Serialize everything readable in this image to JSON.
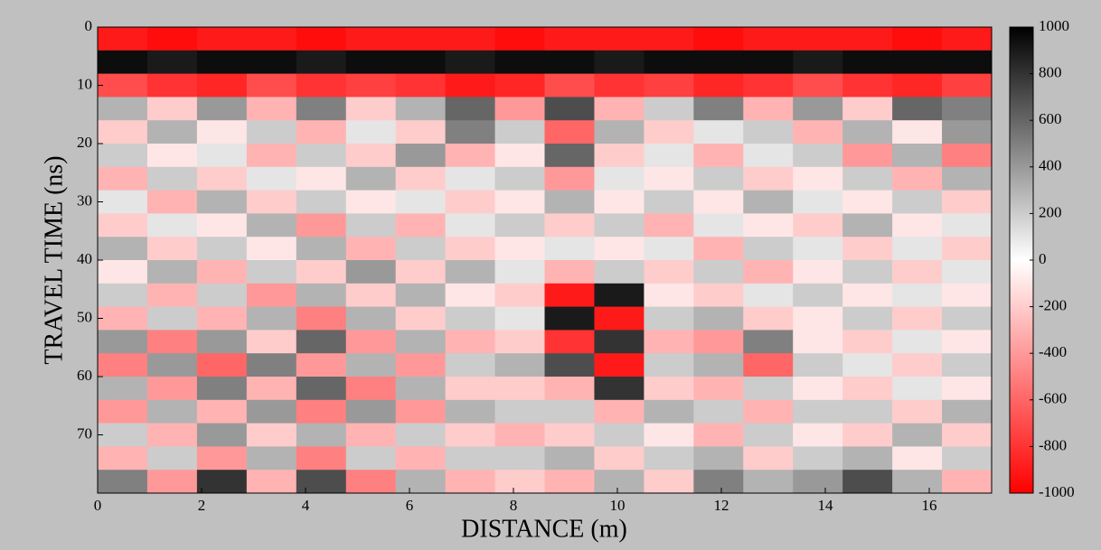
{
  "chart_data": {
    "type": "heatmap",
    "xlabel": "DISTANCE (m)",
    "ylabel": "TRAVEL TIME (ns)",
    "xlim": [
      0,
      17.2
    ],
    "ylim": [
      0,
      80
    ],
    "y_reversed": true,
    "xticks": [
      0,
      2,
      4,
      6,
      8,
      10,
      12,
      14,
      16
    ],
    "yticks": [
      0,
      10,
      20,
      30,
      40,
      50,
      60,
      70
    ],
    "clim": [
      -1000,
      1000
    ],
    "cticks": [
      -1000,
      -800,
      -600,
      -400,
      -200,
      0,
      200,
      400,
      600,
      800,
      1000
    ],
    "colormap": [
      "#ff0000",
      "#ffffff",
      "#000000"
    ],
    "z": [
      [
        -900,
        -950,
        -900,
        -900,
        -950,
        -900,
        -900,
        -900,
        -950,
        -900,
        -900,
        -900,
        -950,
        -900,
        -900,
        -900,
        -950,
        -900
      ],
      [
        950,
        900,
        950,
        950,
        900,
        950,
        950,
        900,
        950,
        950,
        900,
        950,
        950,
        950,
        900,
        950,
        950,
        950
      ],
      [
        -700,
        -800,
        -850,
        -700,
        -800,
        -750,
        -800,
        -900,
        -850,
        -700,
        -800,
        -750,
        -850,
        -800,
        -700,
        -800,
        -850,
        -750
      ],
      [
        300,
        -200,
        400,
        -300,
        500,
        -200,
        300,
        600,
        -400,
        700,
        -300,
        200,
        500,
        -300,
        400,
        -200,
        600,
        500
      ],
      [
        -200,
        300,
        -100,
        200,
        -300,
        100,
        -200,
        500,
        200,
        -600,
        300,
        -200,
        100,
        200,
        -300,
        300,
        -100,
        400
      ],
      [
        200,
        -100,
        100,
        -300,
        200,
        -200,
        400,
        -300,
        -100,
        600,
        -200,
        100,
        -300,
        100,
        200,
        -400,
        300,
        -500
      ],
      [
        -300,
        200,
        -200,
        100,
        -100,
        300,
        -200,
        100,
        200,
        -400,
        100,
        -100,
        200,
        -200,
        -100,
        200,
        -300,
        300
      ],
      [
        100,
        -300,
        300,
        -200,
        200,
        -100,
        100,
        -200,
        -100,
        300,
        -100,
        200,
        -100,
        300,
        100,
        -100,
        200,
        -200
      ],
      [
        -200,
        100,
        -100,
        300,
        -400,
        200,
        -300,
        100,
        200,
        -200,
        200,
        -300,
        100,
        -100,
        -200,
        300,
        -100,
        100
      ],
      [
        300,
        -200,
        200,
        -100,
        300,
        -300,
        200,
        -200,
        -100,
        100,
        -100,
        100,
        -300,
        200,
        100,
        -200,
        100,
        -200
      ],
      [
        -100,
        300,
        -300,
        200,
        -200,
        400,
        -200,
        300,
        100,
        -300,
        200,
        -200,
        200,
        -300,
        -100,
        200,
        -200,
        100
      ],
      [
        200,
        -300,
        200,
        -400,
        300,
        -200,
        300,
        -100,
        -200,
        -900,
        900,
        -100,
        -200,
        100,
        200,
        -100,
        100,
        -100
      ],
      [
        -300,
        200,
        -300,
        300,
        -500,
        300,
        -200,
        200,
        100,
        900,
        -900,
        200,
        300,
        -200,
        -100,
        200,
        -200,
        200
      ],
      [
        400,
        -500,
        400,
        -200,
        600,
        -400,
        300,
        -300,
        -200,
        -800,
        800,
        -300,
        -400,
        500,
        -100,
        -200,
        100,
        -100
      ],
      [
        -500,
        400,
        -600,
        500,
        -400,
        300,
        -400,
        200,
        300,
        700,
        -900,
        200,
        300,
        -600,
        200,
        100,
        -200,
        200
      ],
      [
        300,
        -400,
        500,
        -300,
        600,
        -500,
        300,
        -200,
        -200,
        -300,
        800,
        -200,
        -300,
        200,
        -100,
        -200,
        100,
        -100
      ],
      [
        -400,
        300,
        -300,
        400,
        -500,
        400,
        -400,
        300,
        200,
        200,
        -300,
        300,
        200,
        -300,
        200,
        200,
        -200,
        300
      ],
      [
        200,
        -300,
        400,
        -200,
        300,
        -300,
        200,
        -200,
        -300,
        -200,
        200,
        -100,
        -300,
        200,
        -100,
        -200,
        300,
        -200
      ],
      [
        -300,
        200,
        -400,
        300,
        -500,
        200,
        -300,
        200,
        200,
        300,
        -200,
        200,
        300,
        -200,
        200,
        300,
        -100,
        200
      ],
      [
        500,
        -400,
        800,
        -300,
        700,
        -500,
        300,
        -300,
        -200,
        -300,
        300,
        -200,
        500,
        300,
        400,
        700,
        300,
        -300
      ]
    ]
  }
}
